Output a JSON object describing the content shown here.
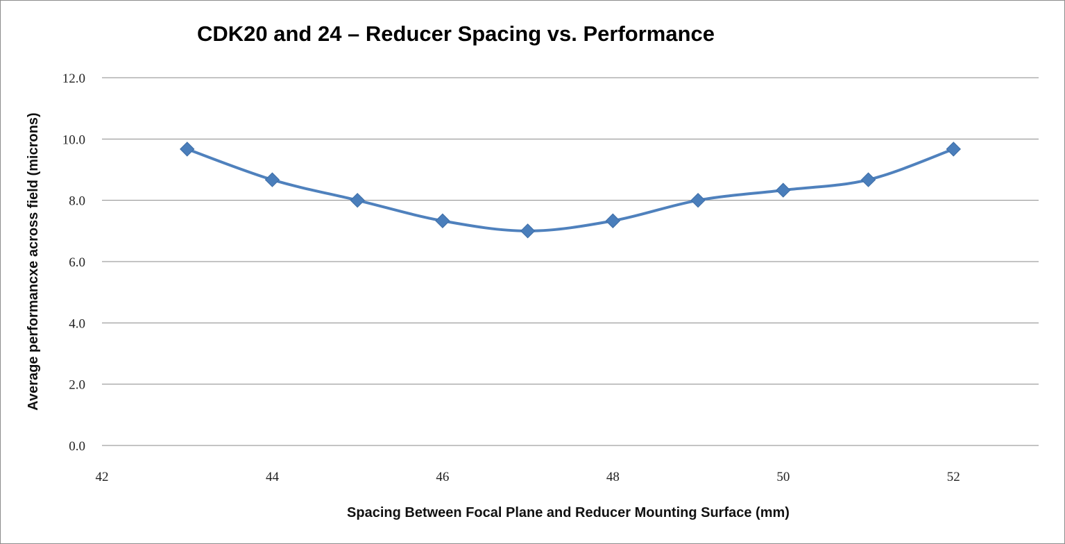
{
  "chart_data": {
    "type": "line",
    "title": "CDK20 and 24 – Reducer Spacing vs. Performance",
    "xlabel": "Spacing Between Focal Plane and Reducer Mounting Surface (mm)",
    "ylabel": "Average performancxe across field (microns)",
    "xlim": [
      42,
      53
    ],
    "ylim": [
      0,
      12
    ],
    "x_ticks": [
      42,
      44,
      46,
      48,
      50,
      52
    ],
    "x_tick_labels": [
      "42",
      "44",
      "46",
      "48",
      "50",
      "52"
    ],
    "y_ticks": [
      0,
      2,
      4,
      6,
      8,
      10,
      12
    ],
    "y_tick_labels": [
      "0.0",
      "2.0",
      "4.0",
      "6.0",
      "8.0",
      "10.0",
      "12.0"
    ],
    "grid": "horizontal",
    "legend": "none",
    "series": [
      {
        "color": "#4f81bd",
        "marker": "diamond",
        "x": [
          43,
          44,
          45,
          46,
          47,
          48,
          49,
          50,
          51,
          52
        ],
        "y": [
          9.67,
          8.67,
          8.0,
          7.33,
          7.0,
          7.33,
          8.0,
          8.33,
          8.67,
          9.67
        ]
      }
    ]
  }
}
